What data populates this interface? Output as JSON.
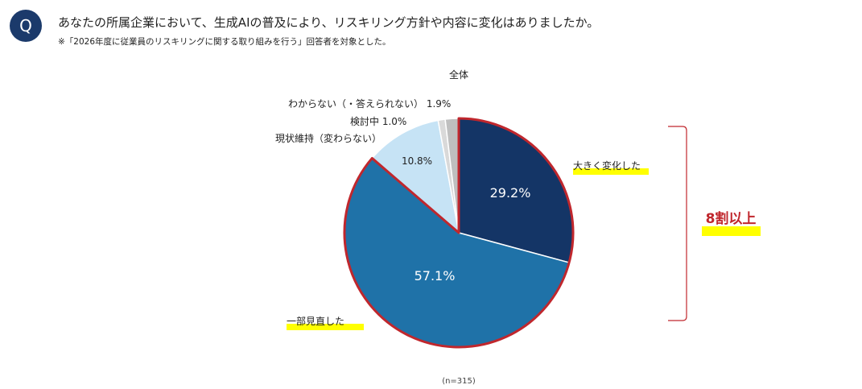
{
  "question": {
    "badge": "Q",
    "text": "あなたの所属企業において、生成AIの普及により、リスキリング方針や内容に変化はありましたか。",
    "note": "※「2026年度に従業員のリスキリングに関する取り組みを行う」回答者を対象とした。"
  },
  "colors": {
    "highlight": "#ffff00",
    "emphasis": "#c0272d",
    "badge": "#1b3a6b"
  },
  "chart_data": {
    "type": "pie",
    "title": "全体",
    "sample": "(n=315)",
    "slices": [
      {
        "label": "大きく変化した",
        "value": 29.2,
        "value_label": "29.2%",
        "color": "#143566",
        "highlight": true
      },
      {
        "label": "一部見直した",
        "value": 57.1,
        "value_label": "57.1%",
        "color": "#1f72a8",
        "highlight": true
      },
      {
        "label": "現状維持（変わらない）",
        "value": 10.8,
        "value_label": "10.8%",
        "color": "#c6e3f5",
        "highlight": false
      },
      {
        "label": "検討中",
        "value": 1.0,
        "value_label": "1.0%",
        "color": "#d9d9d9",
        "highlight": false
      },
      {
        "label": "わからない（・答えられない）",
        "value": 1.9,
        "value_label": "1.9%",
        "color": "#bfbfbf",
        "highlight": false
      }
    ],
    "bracket_label": "8割以上"
  }
}
